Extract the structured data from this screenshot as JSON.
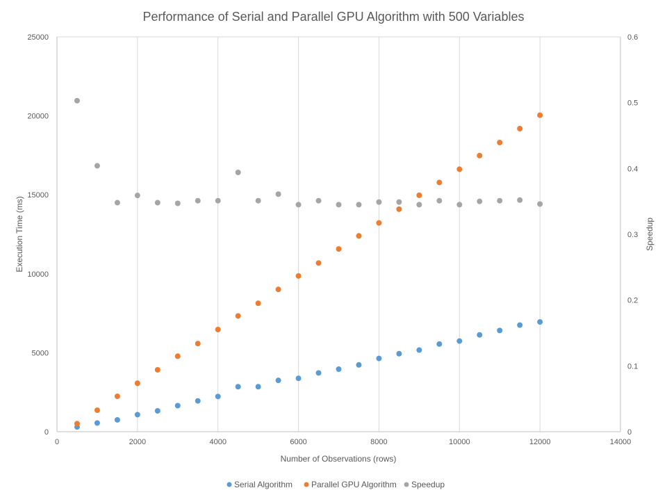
{
  "chart_data": {
    "type": "scatter",
    "title": "Performance of Serial and Parallel GPU Algorithm with 500 Variables",
    "xlabel": "Number of Observations (rows)",
    "ylabel": "Execution Time (ms)",
    "y2label": "Speedup",
    "xlim": [
      0,
      14000
    ],
    "ylim": [
      0,
      25000
    ],
    "y2lim": [
      0,
      0.6
    ],
    "xticks": [
      "0",
      "2000",
      "4000",
      "6000",
      "8000",
      "10000",
      "12000",
      "14000"
    ],
    "yticks": [
      "0",
      "5000",
      "10000",
      "15000",
      "20000",
      "25000"
    ],
    "y2ticks": [
      "0",
      "0.1",
      "0.2",
      "0.3",
      "0.4",
      "0.5",
      "0.6"
    ],
    "grid": "vertical",
    "legend_position": "bottom",
    "series": [
      {
        "name": "Serial Algorithm",
        "axis": "left",
        "color": "#5b9bd5",
        "x": [
          500,
          1000,
          1500,
          2000,
          2500,
          3000,
          3500,
          4000,
          4500,
          5000,
          5500,
          6000,
          6500,
          7000,
          7500,
          8000,
          8500,
          9000,
          9500,
          10000,
          10500,
          11000,
          11500,
          12000
        ],
        "values": [
          300,
          550,
          750,
          1080,
          1320,
          1650,
          1950,
          2230,
          2850,
          2850,
          3250,
          3380,
          3720,
          3960,
          4230,
          4640,
          4940,
          5170,
          5550,
          5740,
          6130,
          6410,
          6750,
          6950
        ]
      },
      {
        "name": "Parallel GPU Algorithm",
        "axis": "left",
        "color": "#ed7d31",
        "x": [
          500,
          1000,
          1500,
          2000,
          2500,
          3000,
          3500,
          4000,
          4500,
          5000,
          5500,
          6000,
          6500,
          7000,
          7500,
          8000,
          8500,
          9000,
          9500,
          10000,
          10500,
          11000,
          11500,
          12000
        ],
        "values": [
          510,
          1360,
          2240,
          3070,
          3920,
          4780,
          5580,
          6470,
          7330,
          8130,
          9010,
          9860,
          10680,
          11570,
          12400,
          13220,
          14090,
          14970,
          15780,
          16620,
          17480,
          18310,
          19190,
          20040
        ]
      },
      {
        "name": "Speedup",
        "axis": "right",
        "color": "#a5a5a5",
        "x": [
          500,
          1000,
          1500,
          2000,
          2500,
          3000,
          3500,
          4000,
          4500,
          5000,
          5500,
          6000,
          6500,
          7000,
          7500,
          8000,
          8500,
          9000,
          9500,
          10000,
          10500,
          11000,
          11500,
          12000
        ],
        "values": [
          0.503,
          0.404,
          0.348,
          0.359,
          0.348,
          0.347,
          0.351,
          0.351,
          0.394,
          0.351,
          0.361,
          0.345,
          0.351,
          0.345,
          0.345,
          0.349,
          0.349,
          0.345,
          0.351,
          0.345,
          0.35,
          0.351,
          0.352,
          0.346
        ]
      }
    ]
  }
}
